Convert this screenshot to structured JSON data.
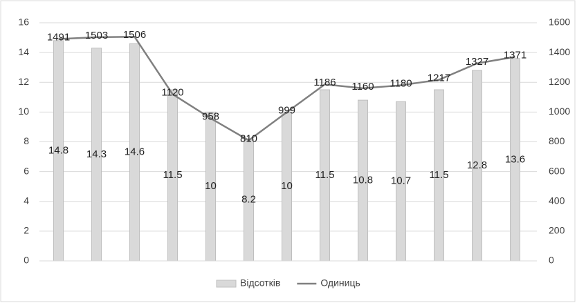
{
  "chart_data": {
    "type": "bar",
    "categories": [
      null,
      null,
      null,
      null,
      null,
      null,
      null,
      null,
      null,
      null,
      null,
      null,
      null
    ],
    "series": [
      {
        "name": "Відсотків",
        "type": "bar",
        "color": "#d9d9d9",
        "values": [
          14.8,
          14.3,
          14.6,
          11.5,
          10,
          8.2,
          10,
          11.5,
          10.8,
          10.7,
          11.5,
          12.8,
          13.6
        ]
      },
      {
        "name": "Одиниць",
        "type": "line",
        "axis": "y2",
        "color": "#808080",
        "values": [
          1491,
          1503,
          1506,
          1120,
          958,
          810,
          999,
          1186,
          1160,
          1180,
          1217,
          1327,
          1371
        ]
      }
    ],
    "ylim": [
      0,
      16
    ],
    "yticks": [
      0,
      2,
      4,
      6,
      8,
      10,
      12,
      14,
      16
    ],
    "y2lim": [
      0,
      1600
    ],
    "y2ticks": [
      0,
      200,
      400,
      600,
      800,
      1000,
      1200,
      1400,
      1600
    ],
    "grid": true,
    "legend": "bottom"
  }
}
